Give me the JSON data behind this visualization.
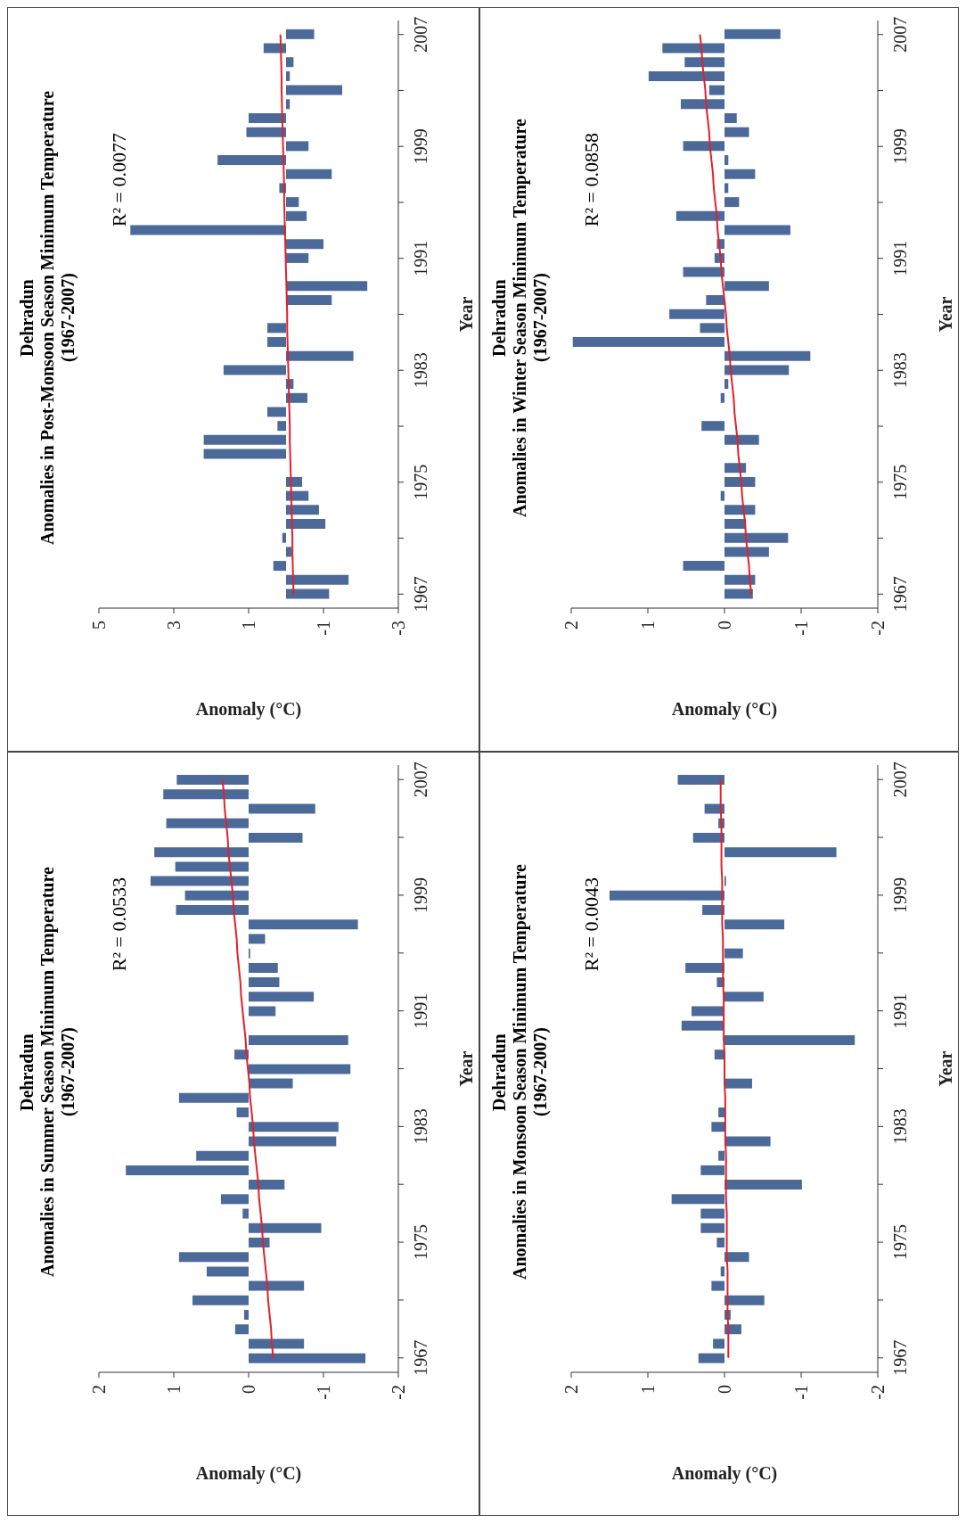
{
  "chart_data": [
    {
      "type": "bar",
      "orientation": "horizontal",
      "title": "Dehradun",
      "subtitle": "Anomalies in Post-Monsoon Season Minimum Temperature\n(1967-2007)",
      "xlabel": "Anomaly (°C)",
      "ylabel": "Year",
      "annotations": [
        "R² = 0.0077"
      ],
      "x": [
        1967,
        1968,
        1969,
        1970,
        1971,
        1972,
        1973,
        1974,
        1975,
        1976,
        1977,
        1978,
        1979,
        1980,
        1981,
        1982,
        1983,
        1984,
        1985,
        1986,
        1987,
        1988,
        1989,
        1990,
        1991,
        1992,
        1993,
        1994,
        1995,
        1996,
        1997,
        1998,
        1999,
        2000,
        2001,
        2002,
        2003,
        2004,
        2005,
        2006,
        2007
      ],
      "ylim": [
        1966,
        2008
      ],
      "yticks": [
        1967,
        {
          "value": 1971,
          "label": null
        },
        1975,
        {
          "value": 1979,
          "label": null
        },
        1983,
        {
          "value": 1987,
          "label": null
        },
        1991,
        {
          "value": 1995,
          "label": null
        },
        1999,
        {
          "value": 2003,
          "label": null
        },
        2007
      ],
      "xlim": [
        5,
        -3
      ],
      "xticks": [
        5,
        3,
        1,
        -1,
        -3
      ],
      "series": [
        {
          "type": "bar",
          "color": "#4b6a99",
          "values": [
            -1.15,
            -1.67,
            0.34,
            -0.15,
            0.1,
            -1.05,
            -0.88,
            -0.6,
            -0.43,
            0,
            2.2,
            2.2,
            0.23,
            0.5,
            -0.57,
            -0.2,
            1.67,
            -1.8,
            0.5,
            0.5,
            0,
            -1.22,
            -2.17,
            null,
            -0.6,
            -1.0,
            4.16,
            -0.55,
            -0.34,
            0.18,
            -1.22,
            1.83,
            -0.6,
            1.06,
            1.0,
            -0.1,
            -1.5,
            -0.1,
            -0.2,
            0.6,
            -0.75
          ]
        },
        {
          "type": "line",
          "color": "#e3202c",
          "values": [
            -0.2,
            -0.19,
            -0.18,
            -0.17,
            -0.17,
            -0.16,
            -0.15,
            -0.14,
            -0.13,
            -0.12,
            -0.11,
            -0.1,
            -0.1,
            -0.09,
            -0.08,
            -0.07,
            -0.06,
            -0.05,
            -0.04,
            -0.03,
            -0.03,
            -0.02,
            -0.01,
            0.0,
            0.01,
            0.02,
            0.03,
            0.04,
            0.05,
            0.05,
            0.06,
            0.07,
            0.08,
            0.09,
            0.1,
            0.11,
            0.12,
            0.12,
            0.13,
            0.14,
            0.15
          ]
        }
      ]
    },
    {
      "type": "bar",
      "orientation": "horizontal",
      "title": "Dehradun",
      "subtitle": "Anomalies in Winter Season Minimum Temperature\n(1967-2007)",
      "xlabel": "Anomaly (°C)",
      "ylabel": "Year",
      "annotations": [
        "R² = 0.0858"
      ],
      "x": [
        1967,
        1968,
        1969,
        1970,
        1971,
        1972,
        1973,
        1974,
        1975,
        1976,
        1977,
        1978,
        1979,
        1980,
        1981,
        1982,
        1983,
        1984,
        1985,
        1986,
        1987,
        1988,
        1989,
        1990,
        1991,
        1992,
        1993,
        1994,
        1995,
        1996,
        1997,
        1998,
        1999,
        2000,
        2001,
        2002,
        2003,
        2004,
        2005,
        2006,
        2007
      ],
      "ylim": [
        1966,
        2008
      ],
      "yticks": [
        1967,
        {
          "value": 1971,
          "label": null
        },
        1975,
        {
          "value": 1979,
          "label": null
        },
        1983,
        {
          "value": 1987,
          "label": null
        },
        1991,
        {
          "value": 1995,
          "label": null
        },
        1999,
        {
          "value": 2003,
          "label": null
        },
        2007
      ],
      "xlim": [
        2,
        -2
      ],
      "xticks": [
        2,
        1,
        0,
        -1,
        -2
      ],
      "series": [
        {
          "type": "bar",
          "color": "#4b6a99",
          "values": [
            -0.37,
            -0.4,
            0.54,
            -0.58,
            -0.83,
            -0.28,
            -0.4,
            0.05,
            -0.4,
            -0.28,
            0,
            -0.45,
            0.3,
            0,
            0.05,
            -0.05,
            -0.84,
            -1.12,
            1.98,
            0.32,
            0.72,
            0.24,
            -0.58,
            0.54,
            0.13,
            0.1,
            -0.86,
            0.63,
            -0.19,
            -0.05,
            -0.4,
            -0.05,
            0.54,
            -0.32,
            -0.16,
            0.57,
            0.2,
            0.99,
            0.52,
            0.81,
            -0.73
          ]
        },
        {
          "type": "line",
          "color": "#e3202c",
          "values": [
            -0.35,
            -0.33,
            -0.32,
            -0.3,
            -0.28,
            -0.27,
            -0.25,
            -0.23,
            -0.22,
            -0.2,
            -0.18,
            -0.17,
            -0.15,
            -0.13,
            -0.12,
            -0.1,
            -0.08,
            -0.07,
            -0.05,
            -0.03,
            -0.02,
            0.0,
            0.02,
            0.04,
            0.05,
            0.07,
            0.09,
            0.1,
            0.12,
            0.14,
            0.15,
            0.17,
            0.19,
            0.2,
            0.22,
            0.24,
            0.25,
            0.27,
            0.29,
            0.3,
            0.32
          ]
        }
      ]
    },
    {
      "type": "bar",
      "orientation": "horizontal",
      "title": "Dehradun",
      "subtitle": "Anomalies in Summer Season Minimum Temperature\n(1967-2007)",
      "xlabel": "Anomaly (°C)",
      "ylabel": "Year",
      "annotations": [
        "R² = 0.0533"
      ],
      "x": [
        1967,
        1968,
        1969,
        1970,
        1971,
        1972,
        1973,
        1974,
        1975,
        1976,
        1977,
        1978,
        1979,
        1980,
        1981,
        1982,
        1983,
        1984,
        1985,
        1986,
        1987,
        1988,
        1989,
        1990,
        1991,
        1992,
        1993,
        1994,
        1995,
        1996,
        1997,
        1998,
        1999,
        2000,
        2001,
        2002,
        2003,
        2004,
        2005,
        2006,
        2007
      ],
      "ylim": [
        1966,
        2008
      ],
      "yticks": [
        1967,
        {
          "value": 1971,
          "label": null
        },
        1975,
        {
          "value": 1979,
          "label": null
        },
        1983,
        {
          "value": 1987,
          "label": null
        },
        1991,
        {
          "value": 1995,
          "label": null
        },
        1999,
        {
          "value": 2003,
          "label": null
        },
        2007
      ],
      "xlim": [
        2,
        -2
      ],
      "xticks": [
        2,
        1,
        0,
        -1,
        -2
      ],
      "series": [
        {
          "type": "bar",
          "color": "#4b6a99",
          "values": [
            -1.56,
            -0.74,
            0.18,
            0.06,
            0.75,
            -0.74,
            0.56,
            0.93,
            -0.28,
            -0.97,
            0.08,
            0.37,
            -0.48,
            1.64,
            0.7,
            -1.17,
            -1.2,
            0.16,
            0.93,
            -0.59,
            -1.36,
            0.19,
            -1.33,
            0,
            -0.36,
            -0.87,
            -0.41,
            -0.39,
            -0.02,
            -0.22,
            -1.46,
            0.97,
            0.85,
            1.31,
            0.98,
            1.26,
            -0.72,
            1.1,
            -0.89,
            1.14,
            0.96
          ]
        },
        {
          "type": "line",
          "color": "#e3202c",
          "values": [
            -0.33,
            -0.31,
            -0.3,
            -0.28,
            -0.26,
            -0.25,
            -0.23,
            -0.21,
            -0.19,
            -0.18,
            -0.16,
            -0.14,
            -0.13,
            -0.11,
            -0.09,
            -0.07,
            -0.06,
            -0.04,
            -0.02,
            -0.01,
            0.01,
            0.03,
            0.04,
            0.06,
            0.08,
            0.1,
            0.11,
            0.13,
            0.15,
            0.16,
            0.18,
            0.2,
            0.21,
            0.23,
            0.25,
            0.27,
            0.28,
            0.3,
            0.32,
            0.33,
            0.35
          ]
        }
      ]
    },
    {
      "type": "bar",
      "orientation": "horizontal",
      "title": "Dehradun",
      "subtitle": "Anomalies in Monsoon Season Minimum Temperature\n(1967-2007)",
      "xlabel": "Anomaly (°C)",
      "ylabel": "Year",
      "annotations": [
        "R² = 0.0043"
      ],
      "x": [
        1967,
        1968,
        1969,
        1970,
        1971,
        1972,
        1973,
        1974,
        1975,
        1976,
        1977,
        1978,
        1979,
        1980,
        1981,
        1982,
        1983,
        1984,
        1985,
        1986,
        1987,
        1988,
        1989,
        1990,
        1991,
        1992,
        1993,
        1994,
        1995,
        1996,
        1997,
        1998,
        1999,
        2000,
        2001,
        2002,
        2003,
        2004,
        2005,
        2006,
        2007
      ],
      "ylim": [
        1966,
        2008
      ],
      "yticks": [
        1967,
        {
          "value": 1971,
          "label": null
        },
        1975,
        {
          "value": 1979,
          "label": null
        },
        1983,
        {
          "value": 1987,
          "label": null
        },
        1991,
        {
          "value": 1995,
          "label": null
        },
        1999,
        {
          "value": 2003,
          "label": null
        },
        2007
      ],
      "xlim": [
        2,
        -2
      ],
      "xticks": [
        2,
        1,
        0,
        -1,
        -2
      ],
      "series": [
        {
          "type": "bar",
          "color": "#4b6a99",
          "values": [
            0.34,
            0.15,
            -0.22,
            -0.08,
            -0.52,
            0.17,
            0.05,
            -0.32,
            0.1,
            0.31,
            0.31,
            0.69,
            -1.01,
            0.31,
            0.08,
            -0.6,
            0.17,
            0.08,
            null,
            -0.36,
            0,
            0.13,
            -1.7,
            0.56,
            0.43,
            -0.51,
            0.1,
            0.51,
            -0.24,
            0,
            -0.78,
            0.29,
            1.5,
            -0.02,
            0,
            -1.46,
            0.41,
            0.08,
            0.26,
            0,
            0.61
          ]
        },
        {
          "type": "line",
          "color": "#e3202c",
          "values": [
            -0.05,
            -0.05,
            -0.05,
            -0.04,
            -0.04,
            -0.04,
            -0.04,
            -0.03,
            -0.03,
            -0.03,
            -0.03,
            -0.02,
            -0.02,
            -0.02,
            -0.02,
            -0.01,
            -0.01,
            -0.01,
            -0.01,
            0.0,
            0.0,
            0.0,
            0.01,
            0.01,
            0.01,
            0.01,
            0.02,
            0.02,
            0.02,
            0.02,
            0.03,
            0.03,
            0.03,
            0.03,
            0.04,
            0.04,
            0.04,
            0.04,
            0.05,
            0.05,
            0.05
          ]
        }
      ]
    }
  ]
}
